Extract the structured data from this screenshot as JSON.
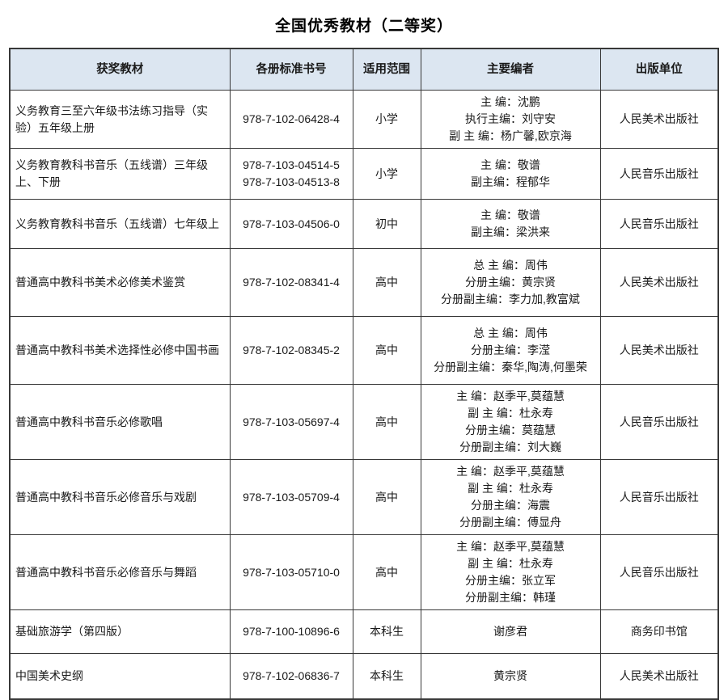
{
  "page_title": "全国优秀教材（二等奖）",
  "table": {
    "headers": [
      "获奖教材",
      "各册标准书号",
      "适用范围",
      "主要编者",
      "出版单位"
    ],
    "rows": [
      {
        "material": "义务教育三至六年级书法练习指导（实验）五年级上册",
        "isbns": [
          "978-7-102-06428-4"
        ],
        "scope": "小学",
        "editors": [
          "主 编：沈鹏",
          "执行主编：刘守安",
          "副 主 编：杨广馨,欧京海"
        ],
        "publisher": "人民美术出版社"
      },
      {
        "material": "义务教育教科书音乐（五线谱）三年级上、下册",
        "isbns": [
          "978-7-103-04514-5",
          "978-7-103-04513-8"
        ],
        "scope": "小学",
        "editors": [
          "主 编：敬谱",
          "副主编：程郁华"
        ],
        "publisher": "人民音乐出版社"
      },
      {
        "material": "义务教育教科书音乐（五线谱）七年级上",
        "isbns": [
          "978-7-103-04506-0"
        ],
        "scope": "初中",
        "editors": [
          "主 编：敬谱",
          "副主编：梁洪来"
        ],
        "publisher": "人民音乐出版社"
      },
      {
        "material": "普通高中教科书美术必修美术鉴赏",
        "isbns": [
          "978-7-102-08341-4"
        ],
        "scope": "高中",
        "editors": [
          "总 主 编：周伟",
          "分册主编：黄宗贤",
          "分册副主编：李力加,教富斌"
        ],
        "publisher": "人民美术出版社"
      },
      {
        "material": "普通高中教科书美术选择性必修中国书画",
        "isbns": [
          "978-7-102-08345-2"
        ],
        "scope": "高中",
        "editors": [
          "总 主 编：周伟",
          "分册主编：李滢",
          "分册副主编：秦华,陶涛,何墨荣"
        ],
        "publisher": "人民美术出版社"
      },
      {
        "material": "普通高中教科书音乐必修歌唱",
        "isbns": [
          "978-7-103-05697-4"
        ],
        "scope": "高中",
        "editors": [
          "主 编：赵季平,莫蕴慧",
          "副 主 编：杜永寿",
          "分册主编：莫蕴慧",
          "分册副主编：刘大巍"
        ],
        "publisher": "人民音乐出版社"
      },
      {
        "material": "普通高中教科书音乐必修音乐与戏剧",
        "isbns": [
          "978-7-103-05709-4"
        ],
        "scope": "高中",
        "editors": [
          "主 编：赵季平,莫蕴慧",
          "副 主 编：杜永寿",
          "分册主编：海震",
          "分册副主编：傅显舟"
        ],
        "publisher": "人民音乐出版社"
      },
      {
        "material": "普通高中教科书音乐必修音乐与舞蹈",
        "isbns": [
          "978-7-103-05710-0"
        ],
        "scope": "高中",
        "editors": [
          "主 编：赵季平,莫蕴慧",
          "副 主 编：杜永寿",
          "分册主编：张立军",
          "分册副主编：韩瑾"
        ],
        "publisher": "人民音乐出版社"
      },
      {
        "material": "基础旅游学（第四版）",
        "isbns": [
          "978-7-100-10896-6"
        ],
        "scope": "本科生",
        "editors": [
          "谢彦君"
        ],
        "publisher": "商务印书馆"
      },
      {
        "material": "中国美术史纲",
        "isbns": [
          "978-7-102-06836-7"
        ],
        "scope": "本科生",
        "editors": [
          "黄宗贤"
        ],
        "publisher": "人民美术出版社"
      }
    ]
  },
  "colors": {
    "header_bg": "#dce6f1",
    "border": "#383838",
    "text": "#1a1a1a",
    "background": "#ffffff"
  }
}
